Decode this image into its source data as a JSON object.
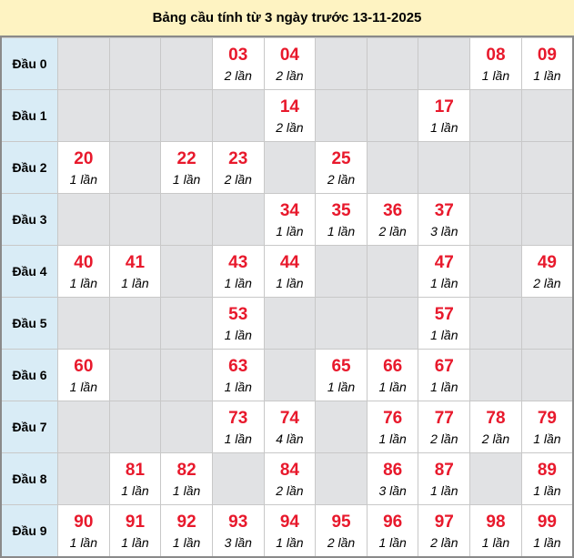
{
  "title": "Bảng cầu tính từ 3 ngày trước 13-11-2025",
  "colors": {
    "number": "#e8192c",
    "empty_cell": "#e1e2e4",
    "row_label_bg": "#d9ecf6",
    "title_bg": "#fef3c2"
  },
  "rows": [
    {
      "label": "Đầu 0",
      "cells": [
        null,
        null,
        null,
        {
          "n": "03",
          "c": "2 lần"
        },
        {
          "n": "04",
          "c": "2 lần"
        },
        null,
        null,
        null,
        {
          "n": "08",
          "c": "1 lần"
        },
        {
          "n": "09",
          "c": "1 lần"
        }
      ]
    },
    {
      "label": "Đầu 1",
      "cells": [
        null,
        null,
        null,
        null,
        {
          "n": "14",
          "c": "2 lần"
        },
        null,
        null,
        {
          "n": "17",
          "c": "1 lần"
        },
        null,
        null
      ]
    },
    {
      "label": "Đầu 2",
      "cells": [
        {
          "n": "20",
          "c": "1 lần"
        },
        null,
        {
          "n": "22",
          "c": "1 lần"
        },
        {
          "n": "23",
          "c": "2 lần"
        },
        null,
        {
          "n": "25",
          "c": "2 lần"
        },
        null,
        null,
        null,
        null
      ]
    },
    {
      "label": "Đầu 3",
      "cells": [
        null,
        null,
        null,
        null,
        {
          "n": "34",
          "c": "1 lần"
        },
        {
          "n": "35",
          "c": "1 lần"
        },
        {
          "n": "36",
          "c": "2 lần"
        },
        {
          "n": "37",
          "c": "3 lần"
        },
        null,
        null
      ]
    },
    {
      "label": "Đầu 4",
      "cells": [
        {
          "n": "40",
          "c": "1 lần"
        },
        {
          "n": "41",
          "c": "1 lần"
        },
        null,
        {
          "n": "43",
          "c": "1 lần"
        },
        {
          "n": "44",
          "c": "1 lần"
        },
        null,
        null,
        {
          "n": "47",
          "c": "1 lần"
        },
        null,
        {
          "n": "49",
          "c": "2 lần"
        }
      ]
    },
    {
      "label": "Đầu 5",
      "cells": [
        null,
        null,
        null,
        {
          "n": "53",
          "c": "1 lần"
        },
        null,
        null,
        null,
        {
          "n": "57",
          "c": "1 lần"
        },
        null,
        null
      ]
    },
    {
      "label": "Đầu 6",
      "cells": [
        {
          "n": "60",
          "c": "1 lần"
        },
        null,
        null,
        {
          "n": "63",
          "c": "1 lần"
        },
        null,
        {
          "n": "65",
          "c": "1 lần"
        },
        {
          "n": "66",
          "c": "1 lần"
        },
        {
          "n": "67",
          "c": "1 lần"
        },
        null,
        null
      ]
    },
    {
      "label": "Đầu 7",
      "cells": [
        null,
        null,
        null,
        {
          "n": "73",
          "c": "1 lần"
        },
        {
          "n": "74",
          "c": "4 lần"
        },
        null,
        {
          "n": "76",
          "c": "1 lần"
        },
        {
          "n": "77",
          "c": "2 lần"
        },
        {
          "n": "78",
          "c": "2 lần"
        },
        {
          "n": "79",
          "c": "1 lần"
        }
      ]
    },
    {
      "label": "Đầu 8",
      "cells": [
        null,
        {
          "n": "81",
          "c": "1 lần"
        },
        {
          "n": "82",
          "c": "1 lần"
        },
        null,
        {
          "n": "84",
          "c": "2 lần"
        },
        null,
        {
          "n": "86",
          "c": "3 lần"
        },
        {
          "n": "87",
          "c": "1 lần"
        },
        null,
        {
          "n": "89",
          "c": "1 lần"
        }
      ]
    },
    {
      "label": "Đầu 9",
      "cells": [
        {
          "n": "90",
          "c": "1 lần"
        },
        {
          "n": "91",
          "c": "1 lần"
        },
        {
          "n": "92",
          "c": "1 lần"
        },
        {
          "n": "93",
          "c": "3 lần"
        },
        {
          "n": "94",
          "c": "1 lần"
        },
        {
          "n": "95",
          "c": "2 lần"
        },
        {
          "n": "96",
          "c": "1 lần"
        },
        {
          "n": "97",
          "c": "2 lần"
        },
        {
          "n": "98",
          "c": "1 lần"
        },
        {
          "n": "99",
          "c": "1 lần"
        }
      ]
    }
  ]
}
